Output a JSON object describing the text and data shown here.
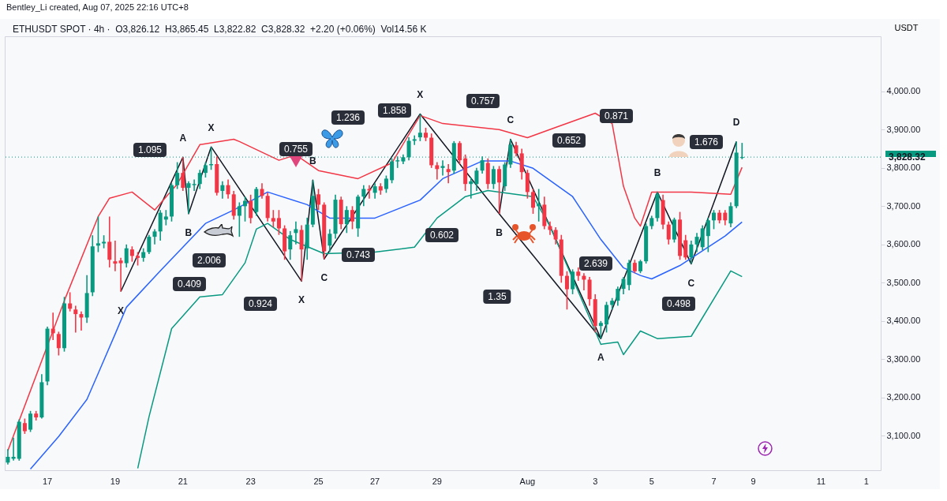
{
  "chart_data": {
    "type": "candlestick",
    "title": "Bentley_Li created, Aug 07, 2025 22:16 UTC+8",
    "subtitle": "ETHUSDT SPOT · 4h ·  O3,826.12  H3,865.45  L3,822.82  C3,828.32  +2.20 (+0.06%)  Vol14.56 K",
    "ylabel": "USDT",
    "categories": [
      null,
      null,
      null,
      null,
      null,
      null,
      null,
      "17",
      null,
      null,
      null,
      null,
      null,
      null,
      null,
      null,
      null,
      null,
      null,
      "19",
      null,
      null,
      null,
      null,
      null,
      null,
      null,
      null,
      null,
      null,
      null,
      "21",
      null,
      null,
      null,
      null,
      null,
      null,
      null,
      null,
      null,
      null,
      null,
      "23",
      null,
      null,
      null,
      null,
      null,
      null,
      null,
      null,
      null,
      null,
      null,
      "25",
      null,
      null,
      null,
      null,
      null,
      null,
      null,
      null,
      null,
      "27",
      null,
      null,
      null,
      null,
      null,
      null,
      null,
      null,
      null,
      null,
      "29",
      null,
      null,
      null,
      null,
      null,
      null,
      null,
      null,
      null,
      null,
      null,
      null,
      null,
      null,
      null,
      "Aug",
      null,
      null,
      null,
      null,
      null,
      null,
      null,
      null,
      null,
      null,
      null,
      "3",
      null,
      null,
      null,
      null,
      null,
      null,
      null,
      null,
      null,
      "5",
      null,
      null,
      null,
      null,
      null,
      null,
      null,
      null,
      null,
      null,
      "7",
      null,
      null,
      null,
      null,
      null,
      null,
      "9",
      null,
      null,
      null,
      null,
      null,
      null,
      null,
      null,
      null,
      null,
      null,
      "11",
      null,
      null,
      null,
      null,
      null,
      null,
      null,
      "1",
      null,
      null
    ],
    "ohlc": [
      [
        3030,
        3065,
        3025,
        3045
      ],
      [
        3040,
        3095,
        3035,
        3045
      ],
      [
        3040,
        3143,
        3035,
        3137
      ],
      [
        3133,
        3145,
        3105,
        3112
      ],
      [
        3116,
        3165,
        3110,
        3158
      ],
      [
        3158,
        3165,
        3140,
        3148
      ],
      [
        3148,
        3261,
        3145,
        3240
      ],
      [
        3242,
        3385,
        3232,
        3380
      ],
      [
        3380,
        3422,
        3350,
        3368
      ],
      [
        3366,
        3372,
        3310,
        3329
      ],
      [
        3329,
        3463,
        3320,
        3446
      ],
      [
        3446,
        3475,
        3425,
        3432
      ],
      [
        3430,
        3440,
        3370,
        3418
      ],
      [
        3418,
        3425,
        3375,
        3409
      ],
      [
        3409,
        3520,
        3395,
        3473
      ],
      [
        3475,
        3624,
        3465,
        3595
      ],
      [
        3597,
        3673,
        3580,
        3603
      ],
      [
        3603,
        3624,
        3590,
        3607
      ],
      [
        3607,
        3673,
        3540,
        3560
      ],
      [
        3556,
        3610,
        3530,
        3550
      ],
      [
        3558,
        3565,
        3477,
        3551
      ],
      [
        3551,
        3600,
        3540,
        3590
      ],
      [
        3587,
        3595,
        3555,
        3570
      ],
      [
        3570,
        3580,
        3545,
        3565
      ],
      [
        3565,
        3590,
        3555,
        3580
      ],
      [
        3580,
        3625,
        3575,
        3620
      ],
      [
        3620,
        3640,
        3600,
        3634
      ],
      [
        3634,
        3690,
        3610,
        3683
      ],
      [
        3665,
        3690,
        3650,
        3673
      ],
      [
        3673,
        3760,
        3660,
        3755
      ],
      [
        3755,
        3815,
        3745,
        3787
      ],
      [
        3787,
        3828,
        3740,
        3748
      ],
      [
        3748,
        3765,
        3680,
        3760
      ],
      [
        3755,
        3770,
        3740,
        3758
      ],
      [
        3758,
        3795,
        3745,
        3787
      ],
      [
        3787,
        3815,
        3775,
        3807
      ],
      [
        3807,
        3855,
        3795,
        3810
      ],
      [
        3810,
        3830,
        3728,
        3735
      ],
      [
        3740,
        3765,
        3720,
        3755
      ],
      [
        3755,
        3770,
        3720,
        3731
      ],
      [
        3731,
        3740,
        3665,
        3675
      ],
      [
        3675,
        3710,
        3620,
        3700
      ],
      [
        3700,
        3725,
        3660,
        3714
      ],
      [
        3714,
        3730,
        3655,
        3669
      ],
      [
        3685,
        3750,
        3675,
        3745
      ],
      [
        3745,
        3760,
        3720,
        3727
      ],
      [
        3727,
        3735,
        3660,
        3669
      ],
      [
        3669,
        3690,
        3645,
        3660
      ],
      [
        3669,
        3690,
        3625,
        3642
      ],
      [
        3642,
        3650,
        3560,
        3582
      ],
      [
        3587,
        3635,
        3560,
        3624
      ],
      [
        3630,
        3660,
        3600,
        3640
      ],
      [
        3638,
        3650,
        3504,
        3587
      ],
      [
        3590,
        3670,
        3560,
        3652
      ],
      [
        3652,
        3768,
        3645,
        3727
      ],
      [
        3731,
        3745,
        3690,
        3704
      ],
      [
        3704,
        3710,
        3562,
        3582
      ],
      [
        3597,
        3640,
        3580,
        3628
      ],
      [
        3628,
        3730,
        3615,
        3717
      ],
      [
        3717,
        3725,
        3640,
        3653
      ],
      [
        3653,
        3700,
        3630,
        3690
      ],
      [
        3690,
        3700,
        3640,
        3660
      ],
      [
        3642,
        3730,
        3620,
        3725
      ],
      [
        3725,
        3755,
        3700,
        3745
      ],
      [
        3745,
        3755,
        3720,
        3741
      ],
      [
        3735,
        3760,
        3720,
        3752
      ],
      [
        3752,
        3760,
        3730,
        3741
      ],
      [
        3745,
        3780,
        3735,
        3772
      ],
      [
        3768,
        3825,
        3760,
        3817
      ],
      [
        3817,
        3830,
        3800,
        3820
      ],
      [
        3817,
        3835,
        3810,
        3828
      ],
      [
        3828,
        3880,
        3820,
        3871
      ],
      [
        3871,
        3885,
        3860,
        3875
      ],
      [
        3880,
        3941,
        3870,
        3892
      ],
      [
        3892,
        3905,
        3870,
        3879
      ],
      [
        3879,
        3890,
        3800,
        3807
      ],
      [
        3807,
        3815,
        3770,
        3797
      ],
      [
        3800,
        3820,
        3780,
        3805
      ],
      [
        3797,
        3810,
        3760,
        3789
      ],
      [
        3793,
        3870,
        3785,
        3865
      ],
      [
        3865,
        3870,
        3810,
        3820
      ],
      [
        3825,
        3835,
        3740,
        3758
      ],
      [
        3758,
        3775,
        3720,
        3765
      ],
      [
        3758,
        3800,
        3740,
        3793
      ],
      [
        3793,
        3830,
        3785,
        3820
      ],
      [
        3813,
        3825,
        3745,
        3758
      ],
      [
        3758,
        3805,
        3745,
        3797
      ],
      [
        3797,
        3805,
        3680,
        3762
      ],
      [
        3752,
        3815,
        3740,
        3809
      ],
      [
        3809,
        3875,
        3800,
        3861
      ],
      [
        3859,
        3868,
        3830,
        3838
      ],
      [
        3838,
        3850,
        3770,
        3789
      ],
      [
        3787,
        3795,
        3720,
        3737
      ],
      [
        3737,
        3745,
        3680,
        3696
      ],
      [
        3700,
        3745,
        3660,
        3705
      ],
      [
        3704,
        3725,
        3640,
        3648
      ],
      [
        3648,
        3660,
        3625,
        3638
      ],
      [
        3638,
        3645,
        3600,
        3613
      ],
      [
        3613,
        3625,
        3500,
        3518
      ],
      [
        3518,
        3530,
        3430,
        3483
      ],
      [
        3483,
        3535,
        3470,
        3529
      ],
      [
        3529,
        3540,
        3505,
        3518
      ],
      [
        3518,
        3525,
        3480,
        3508
      ],
      [
        3508,
        3515,
        3440,
        3457
      ],
      [
        3457,
        3470,
        3370,
        3387
      ],
      [
        3387,
        3400,
        3354,
        3395
      ],
      [
        3391,
        3450,
        3370,
        3442
      ],
      [
        3442,
        3460,
        3430,
        3453
      ],
      [
        3453,
        3490,
        3440,
        3484
      ],
      [
        3484,
        3515,
        3470,
        3510
      ],
      [
        3494,
        3560,
        3480,
        3552
      ],
      [
        3552,
        3560,
        3525,
        3530
      ],
      [
        3530,
        3560,
        3525,
        3556
      ],
      [
        3556,
        3655,
        3550,
        3648
      ],
      [
        3648,
        3675,
        3640,
        3669
      ],
      [
        3669,
        3737,
        3660,
        3731
      ],
      [
        3716,
        3730,
        3640,
        3652
      ],
      [
        3652,
        3660,
        3600,
        3613
      ],
      [
        3613,
        3670,
        3605,
        3665
      ],
      [
        3665,
        3685,
        3560,
        3570
      ],
      [
        3611,
        3625,
        3560,
        3566
      ],
      [
        3566,
        3610,
        3549,
        3600
      ],
      [
        3600,
        3630,
        3580,
        3620
      ],
      [
        3593,
        3650,
        3585,
        3642
      ],
      [
        3622,
        3670,
        3580,
        3663
      ],
      [
        3663,
        3690,
        3640,
        3683
      ],
      [
        3683,
        3690,
        3655,
        3663
      ],
      [
        3683,
        3690,
        3650,
        3663
      ],
      [
        3655,
        3710,
        3645,
        3700
      ],
      [
        3700,
        3869,
        3695,
        3840
      ],
      [
        3826.12,
        3865.45,
        3822.82,
        3828.32
      ],
      null,
      null,
      null,
      null,
      null,
      null,
      null,
      null,
      null,
      null,
      null,
      null,
      null,
      null,
      null,
      null,
      null,
      null,
      null,
      null,
      null,
      null,
      null,
      null
    ],
    "series": [
      {
        "type": "line",
        "color": "#131722",
        "values": [
          null,
          null,
          null,
          null,
          null,
          null,
          null,
          null,
          null,
          null,
          null,
          null,
          null,
          null,
          null,
          null,
          null,
          null,
          null,
          null,
          3477,
          null,
          null,
          null,
          null,
          null,
          null,
          null,
          null,
          null,
          null,
          3828,
          3680,
          null,
          null,
          null,
          3855,
          null,
          null,
          null,
          null,
          null,
          null,
          null,
          null,
          null,
          null,
          null,
          null,
          null,
          null,
          null,
          3504,
          null,
          3768,
          null,
          3562,
          null,
          null,
          null,
          null,
          null,
          null,
          null,
          null,
          null,
          null,
          null,
          null,
          null,
          null,
          null,
          null,
          3941,
          null,
          null,
          null,
          null,
          null,
          null,
          null,
          null,
          null,
          null,
          null,
          null,
          null,
          3680,
          null,
          3875,
          null,
          null,
          null,
          null,
          null,
          null,
          null,
          null,
          null,
          null,
          null,
          null,
          null,
          null,
          null,
          3354,
          null,
          null,
          null,
          null,
          null,
          null,
          null,
          null,
          null,
          3737,
          null,
          null,
          null,
          null,
          null,
          3549,
          null,
          null,
          null,
          null,
          null,
          null,
          null,
          3869,
          null,
          null,
          null,
          null,
          null,
          null,
          null,
          null,
          null,
          null,
          null,
          null,
          null,
          null,
          null,
          null,
          null,
          null,
          null,
          null,
          null,
          null,
          null,
          null,
          null
        ],
        "value_labels": [
          null,
          null,
          null,
          null,
          null,
          null,
          null,
          null,
          null,
          null,
          null,
          null,
          null,
          null,
          null,
          null,
          null,
          null,
          null,
          null,
          "X",
          null,
          null,
          null,
          null,
          null,
          null,
          null,
          null,
          null,
          null,
          "A",
          "B",
          null,
          null,
          null,
          "X",
          null,
          null,
          null,
          null,
          null,
          null,
          null,
          null,
          null,
          null,
          null,
          null,
          null,
          null,
          null,
          "X",
          null,
          "B",
          null,
          "C",
          null,
          null,
          null,
          null,
          null,
          null,
          null,
          null,
          null,
          null,
          null,
          null,
          null,
          null,
          null,
          null,
          "X",
          null,
          null,
          null,
          null,
          null,
          null,
          null,
          null,
          null,
          null,
          null,
          null,
          null,
          "B",
          null,
          "C",
          null,
          null,
          null,
          null,
          null,
          null,
          null,
          null,
          null,
          null,
          null,
          null,
          null,
          null,
          null,
          "A",
          null,
          null,
          null,
          null,
          null,
          null,
          null,
          null,
          null,
          "B",
          null,
          null,
          null,
          null,
          null,
          "C",
          null,
          null,
          null,
          null,
          null,
          null,
          null,
          "D",
          null,
          null,
          null,
          null,
          null,
          null,
          null,
          null,
          null,
          null,
          null,
          null,
          null,
          null,
          null,
          null,
          null,
          null,
          null,
          null,
          null,
          null,
          null,
          null,
          null
        ]
      },
      {
        "type": "line",
        "color": "#131722",
        "values": [
          null,
          null,
          null,
          null,
          null,
          null,
          null,
          null,
          null,
          null,
          null,
          null,
          null,
          null,
          null,
          null,
          null,
          null,
          null,
          null,
          null,
          null,
          null,
          null,
          null,
          null,
          null,
          null,
          null,
          null,
          null,
          null,
          null,
          null,
          null,
          null,
          null,
          null,
          null,
          null,
          null,
          null,
          null,
          null,
          null,
          null,
          null,
          null,
          null,
          null,
          null,
          null,
          null,
          null,
          null,
          null,
          null,
          null,
          null,
          null,
          null,
          null,
          null,
          null,
          null,
          null,
          null,
          null,
          null,
          null,
          null,
          null,
          null,
          null,
          null,
          null,
          null,
          null,
          null,
          null,
          null,
          null,
          null,
          null,
          null,
          null,
          null,
          3680,
          null,
          null,
          null,
          null,
          null,
          null,
          null,
          null,
          null,
          null,
          null,
          null,
          null,
          null,
          null,
          null,
          null,
          3354,
          null,
          null,
          null,
          null,
          null,
          null,
          null,
          null,
          null,
          null,
          null,
          null,
          null,
          null,
          null,
          null,
          null,
          null,
          null,
          null,
          null,
          null,
          null,
          null,
          null,
          null,
          null,
          null,
          null,
          null,
          null,
          null,
          null,
          null,
          null,
          null,
          null,
          null,
          null,
          null,
          null,
          null,
          null,
          null,
          null,
          null,
          null,
          null,
          null
        ]
      },
      {
        "type": "line",
        "color": "#f23645",
        "values": [
          3061,
          null,
          null,
          null,
          null,
          null,
          null,
          null,
          null,
          null,
          3453,
          null,
          null,
          null,
          null,
          null,
          3673,
          null,
          3721,
          null,
          null,
          null,
          3737,
          null,
          null,
          null,
          3690,
          null,
          null,
          null,
          3758,
          null,
          null,
          null,
          3861,
          null,
          null,
          null,
          null,
          null,
          3875,
          3869,
          null,
          null,
          null,
          null,
          null,
          null,
          3820,
          null,
          null,
          3834,
          null,
          null,
          null,
          3793,
          null,
          null,
          null,
          null,
          null,
          null,
          3772,
          null,
          null,
          null,
          null,
          null,
          3813,
          null,
          null,
          null,
          null,
          3937,
          null,
          null,
          null,
          3916,
          null,
          null,
          null,
          null,
          null,
          null,
          null,
          null,
          null,
          3900,
          null,
          null,
          null,
          null,
          3879,
          null,
          null,
          null,
          null,
          3906,
          null,
          null,
          null,
          null,
          null,
          null,
          3943,
          null,
          null,
          3916,
          null,
          3752,
          null,
          3669,
          3648,
          null,
          3737,
          null,
          null,
          null,
          null,
          null,
          null,
          3737,
          null,
          null,
          null,
          null,
          null,
          null,
          3731,
          null,
          3801.45,
          null,
          null,
          null,
          null,
          null,
          null,
          null,
          null,
          null,
          null,
          null,
          null,
          null,
          null,
          null,
          null,
          null,
          null,
          null,
          null,
          null,
          null,
          null,
          null
        ]
      },
      {
        "type": "line",
        "color": "#2962ff",
        "values": [
          null,
          null,
          null,
          null,
          3013,
          null,
          null,
          null,
          null,
          3098,
          null,
          null,
          null,
          null,
          3195,
          null,
          3263,
          null,
          null,
          3366,
          null,
          3436,
          null,
          null,
          null,
          null,
          null,
          3531,
          null,
          null,
          null,
          3593,
          null,
          null,
          null,
          3655,
          null,
          null,
          null,
          null,
          3690,
          null,
          null,
          null,
          null,
          null,
          3737,
          null,
          null,
          null,
          null,
          null,
          null,
          3704,
          null,
          null,
          null,
          3669,
          null,
          null,
          null,
          null,
          3669,
          null,
          null,
          3669,
          null,
          null,
          null,
          null,
          null,
          null,
          null,
          3716,
          null,
          null,
          null,
          3772,
          null,
          null,
          null,
          null,
          null,
          null,
          3818,
          null,
          null,
          null,
          null,
          3818,
          null,
          null,
          null,
          3799,
          null,
          null,
          null,
          null,
          null,
          null,
          3725,
          null,
          null,
          null,
          null,
          3613,
          null,
          null,
          null,
          3539,
          null,
          null,
          3519,
          null,
          3510,
          null,
          null,
          null,
          null,
          3545,
          null,
          null,
          null,
          null,
          null,
          null,
          null,
          3622,
          null,
          null,
          3658.71,
          null,
          null,
          null,
          null,
          null,
          null,
          null,
          null,
          null,
          null,
          null,
          null,
          null,
          null,
          null,
          null,
          null,
          null,
          null,
          null,
          null,
          null,
          null,
          null
        ]
      },
      {
        "type": "line",
        "color": "#089981",
        "values": [
          null,
          null,
          null,
          null,
          null,
          null,
          null,
          null,
          null,
          null,
          null,
          null,
          null,
          null,
          null,
          null,
          null,
          null,
          null,
          null,
          null,
          null,
          null,
          3015,
          null,
          3150,
          null,
          null,
          null,
          3380,
          null,
          null,
          null,
          null,
          3463,
          null,
          null,
          null,
          3469,
          null,
          null,
          null,
          3552,
          null,
          3640,
          null,
          3655,
          null,
          null,
          null,
          3613,
          null,
          null,
          null,
          null,
          null,
          3576,
          null,
          null,
          null,
          null,
          null,
          null,
          null,
          null,
          3580,
          null,
          null,
          null,
          null,
          null,
          null,
          3593,
          null,
          null,
          null,
          3669,
          null,
          null,
          null,
          null,
          3725,
          null,
          null,
          null,
          3741,
          null,
          3737,
          null,
          null,
          null,
          null,
          null,
          3725,
          null,
          null,
          3648,
          null,
          null,
          null,
          null,
          null,
          null,
          null,
          3374,
          3339,
          null,
          null,
          3345,
          3312,
          null,
          null,
          3374,
          null,
          null,
          3354,
          null,
          null,
          null,
          null,
          null,
          3360,
          null,
          null,
          null,
          null,
          null,
          null,
          3531,
          null,
          3515.97,
          null,
          null,
          null,
          null,
          null,
          null,
          null,
          null,
          null,
          null,
          null,
          null,
          null,
          null,
          null,
          null,
          null,
          null,
          null,
          null,
          null,
          null,
          null,
          null
        ]
      }
    ],
    "ylim": [
      3010,
      4144
    ],
    "yticks": [
      {
        "value": 3100,
        "label": "3,100.00"
      },
      {
        "value": 3200,
        "label": "3,200.00"
      },
      {
        "value": 3300,
        "label": "3,300.00"
      },
      {
        "value": 3400,
        "label": "3,400.00"
      },
      {
        "value": 3500,
        "label": "3,500.00"
      },
      {
        "value": 3600,
        "label": "3,600.00"
      },
      {
        "value": 3700,
        "label": "3,700.00"
      },
      {
        "value": 3800,
        "label": "3,800.00"
      },
      {
        "value": 3900,
        "label": "3,900.00"
      },
      {
        "value": 4000,
        "label": "4,000.00"
      }
    ],
    "ref_lines": [
      {
        "axis": "y",
        "value": 3828.32,
        "label": "3,828.32",
        "color": "#089981",
        "line_style": "dotted"
      }
    ],
    "annotations": [
      "0.409",
      "1.095",
      "2.006",
      "0.924",
      "0.755",
      "1.236",
      "0.743",
      "1.858",
      "0.602",
      "0.757",
      "0.871",
      "0.652",
      "2.639",
      "1.35",
      "0.498",
      "1.676"
    ],
    "grid": false
  }
}
